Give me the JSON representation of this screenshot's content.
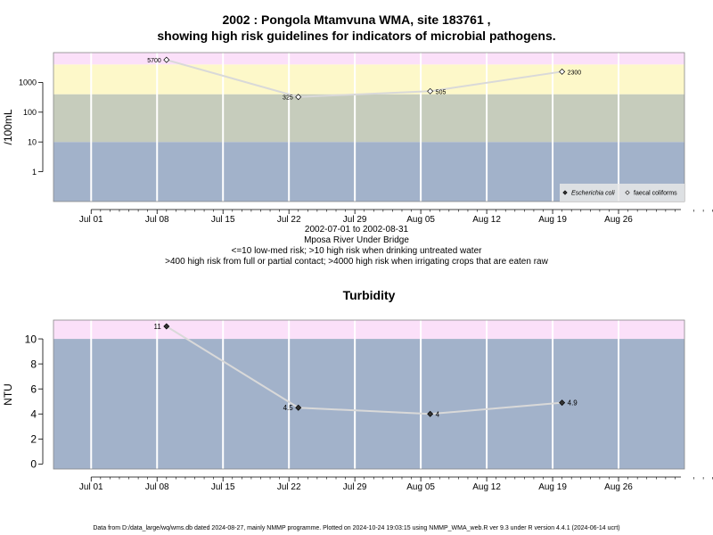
{
  "header": {
    "title_line1": "2002 : Pongola Mtamvuna WMA, site 183761 ,",
    "title_line2": "showing high risk guidelines for indicators of microbial pathogens."
  },
  "caption": {
    "date_range": "2002-07-01 to 2002-08-31",
    "site_name": "Mposa River Under Bridge",
    "guideline_1": "<=10 low-med risk; >10 high risk when drinking untreated water",
    "guideline_2": ">400 high risk from full or partial contact; >4000 high risk when irrigating crops that are eaten raw"
  },
  "footer": {
    "text": "Data from D:/data_large/wq/wms.db dated 2024-08-27, mainly NMMP programme. Plotted on 2024-10-24 19:03:15 using NMMP_WMA_web.R ver 9.3 under R version 4.4.1 (2024-06-14 ucrt)"
  },
  "colors": {
    "band_blue": "#a2b2ca",
    "band_green": "#c6ccbc",
    "band_yellow": "#fdf8c9",
    "band_pink": "#fbe0f9",
    "grid": "#ffffff",
    "line": "#d9d9d9"
  },
  "chart_data": [
    {
      "type": "line",
      "title": "",
      "xlabel": "",
      "ylabel": "/100mL",
      "yscale": "log",
      "xlim": [
        "2002-06-27",
        "2002-09-02"
      ],
      "ylim": [
        0.1,
        10000
      ],
      "yticks": [
        {
          "value": 1,
          "label": "1"
        },
        {
          "value": 10,
          "label": "10"
        },
        {
          "value": 100,
          "label": "100"
        },
        {
          "value": 1000,
          "label": "1000"
        }
      ],
      "xticks": [
        {
          "date": "2002-07-01",
          "label": "Jul 01"
        },
        {
          "date": "2002-07-08",
          "label": "Jul 08"
        },
        {
          "date": "2002-07-15",
          "label": "Jul 15"
        },
        {
          "date": "2002-07-22",
          "label": "Jul 22"
        },
        {
          "date": "2002-07-29",
          "label": "Jul 29"
        },
        {
          "date": "2002-08-05",
          "label": "Aug 05"
        },
        {
          "date": "2002-08-12",
          "label": "Aug 12"
        },
        {
          "date": "2002-08-19",
          "label": "Aug 19"
        },
        {
          "date": "2002-08-26",
          "label": "Aug 26"
        }
      ],
      "bands": [
        {
          "from": 0.1,
          "to": 10,
          "color": "#a2b2ca"
        },
        {
          "from": 10,
          "to": 400,
          "color": "#c6ccbc"
        },
        {
          "from": 400,
          "to": 4000,
          "color": "#fdf8c9"
        },
        {
          "from": 4000,
          "to": 10000,
          "color": "#fbe0f9"
        }
      ],
      "grid": true,
      "legend_position": "bottom-right",
      "legend": [
        {
          "label": "Escherichia coli",
          "marker": "filled-diamond",
          "italic": true
        },
        {
          "label": "faecal coliforms",
          "marker": "open-diamond",
          "italic": false
        }
      ],
      "series": [
        {
          "name": "faecal coliforms",
          "marker": "open-diamond",
          "points": [
            {
              "x": "2002-07-09",
              "y": 5700,
              "label": "5700",
              "label_side": "left"
            },
            {
              "x": "2002-07-23",
              "y": 325,
              "label": "325",
              "label_side": "left"
            },
            {
              "x": "2002-08-06",
              "y": 505,
              "label": "505",
              "label_side": "right"
            },
            {
              "x": "2002-08-20",
              "y": 2300,
              "label": "2300",
              "label_side": "right"
            }
          ]
        }
      ]
    },
    {
      "type": "line",
      "title": "Turbidity",
      "xlabel": "",
      "ylabel": "NTU",
      "yscale": "linear",
      "xlim": [
        "2002-06-27",
        "2002-09-02"
      ],
      "ylim": [
        -0.4,
        11.5
      ],
      "yticks": [
        {
          "value": 0,
          "label": "0"
        },
        {
          "value": 2,
          "label": "2"
        },
        {
          "value": 4,
          "label": "4"
        },
        {
          "value": 6,
          "label": "6"
        },
        {
          "value": 8,
          "label": "8"
        },
        {
          "value": 10,
          "label": "10"
        }
      ],
      "xticks": [
        {
          "date": "2002-07-01",
          "label": "Jul 01"
        },
        {
          "date": "2002-07-08",
          "label": "Jul 08"
        },
        {
          "date": "2002-07-15",
          "label": "Jul 15"
        },
        {
          "date": "2002-07-22",
          "label": "Jul 22"
        },
        {
          "date": "2002-07-29",
          "label": "Jul 29"
        },
        {
          "date": "2002-08-05",
          "label": "Aug 05"
        },
        {
          "date": "2002-08-12",
          "label": "Aug 12"
        },
        {
          "date": "2002-08-19",
          "label": "Aug 19"
        },
        {
          "date": "2002-08-26",
          "label": "Aug 26"
        }
      ],
      "bands": [
        {
          "from": -0.4,
          "to": 10,
          "color": "#a2b2ca"
        },
        {
          "from": 10,
          "to": 11.5,
          "color": "#fbe0f9"
        }
      ],
      "grid": true,
      "series": [
        {
          "marker": "filled-diamond",
          "points": [
            {
              "x": "2002-07-09",
              "y": 11,
              "label": "11",
              "label_side": "left"
            },
            {
              "x": "2002-07-23",
              "y": 4.5,
              "label": "4.5",
              "label_side": "left"
            },
            {
              "x": "2002-08-06",
              "y": 4,
              "label": "4",
              "label_side": "right"
            },
            {
              "x": "2002-08-20",
              "y": 4.9,
              "label": "4.9",
              "label_side": "right"
            }
          ]
        }
      ]
    }
  ]
}
